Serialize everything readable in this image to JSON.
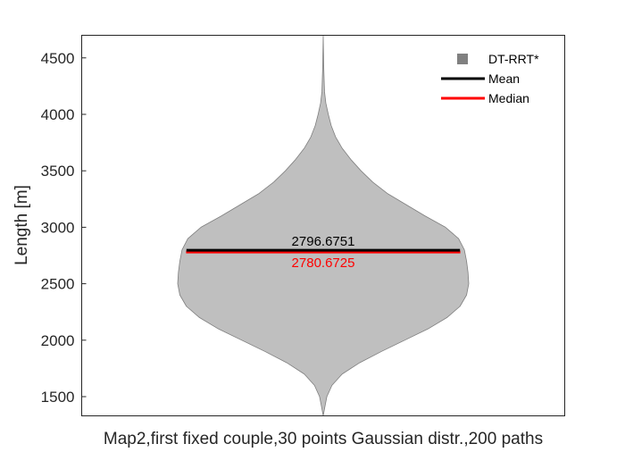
{
  "chart_data": {
    "type": "violin",
    "title": "",
    "xlabel": "Map2,first fixed couple,30 points Gaussian distr.,200 paths",
    "ylabel": "Length [m]",
    "ylim": [
      1330,
      4700
    ],
    "yticks": [
      1500,
      2000,
      2500,
      3000,
      3500,
      4000,
      4500
    ],
    "grid": false,
    "legend_position": "top-right",
    "series": [
      {
        "name": "DT-RRT*",
        "color": "#bfbfbf",
        "outline_color": "#7f7f7f",
        "mean": 2796.6751,
        "median": 2780.6725,
        "mean_label": "2796.6751",
        "median_label": "2780.6725",
        "density_profile": [
          {
            "y": 1330,
            "w": 0.0
          },
          {
            "y": 1400,
            "w": 0.01
          },
          {
            "y": 1500,
            "w": 0.025
          },
          {
            "y": 1600,
            "w": 0.06
          },
          {
            "y": 1700,
            "w": 0.13
          },
          {
            "y": 1800,
            "w": 0.25
          },
          {
            "y": 1900,
            "w": 0.4
          },
          {
            "y": 2000,
            "w": 0.56
          },
          {
            "y": 2100,
            "w": 0.72
          },
          {
            "y": 2200,
            "w": 0.85
          },
          {
            "y": 2300,
            "w": 0.94
          },
          {
            "y": 2400,
            "w": 0.985
          },
          {
            "y": 2500,
            "w": 1.0
          },
          {
            "y": 2600,
            "w": 0.995
          },
          {
            "y": 2700,
            "w": 0.985
          },
          {
            "y": 2800,
            "w": 0.97
          },
          {
            "y": 2900,
            "w": 0.93
          },
          {
            "y": 3000,
            "w": 0.84
          },
          {
            "y": 3100,
            "w": 0.7
          },
          {
            "y": 3200,
            "w": 0.57
          },
          {
            "y": 3300,
            "w": 0.44
          },
          {
            "y": 3400,
            "w": 0.34
          },
          {
            "y": 3500,
            "w": 0.26
          },
          {
            "y": 3600,
            "w": 0.19
          },
          {
            "y": 3700,
            "w": 0.13
          },
          {
            "y": 3800,
            "w": 0.085
          },
          {
            "y": 3900,
            "w": 0.055
          },
          {
            "y": 4000,
            "w": 0.035
          },
          {
            "y": 4100,
            "w": 0.018
          },
          {
            "y": 4200,
            "w": 0.009
          },
          {
            "y": 4400,
            "w": 0.004
          },
          {
            "y": 4700,
            "w": 0.0
          }
        ]
      }
    ],
    "legend": [
      {
        "label": "DT-RRT*",
        "kind": "square",
        "color": "#808080"
      },
      {
        "label": "Mean",
        "kind": "line",
        "color": "#000000"
      },
      {
        "label": "Median",
        "kind": "line",
        "color": "#ff0000"
      }
    ],
    "annotation_colors": {
      "mean": "#000000",
      "median": "#ff0000"
    }
  }
}
